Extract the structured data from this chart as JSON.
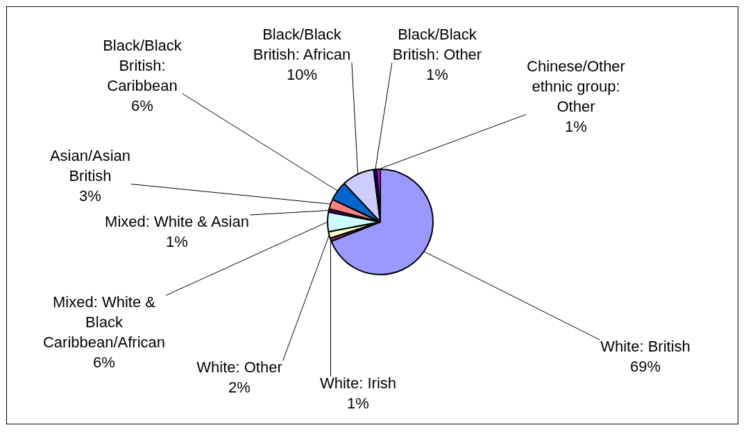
{
  "chart_data": {
    "type": "pie",
    "categories": [
      "White: British",
      "White: Irish",
      "White: Other",
      "Mixed: White & Black Caribbean/African",
      "Mixed: White & Asian",
      "Asian/Asian British",
      "Black/Black British: Caribbean",
      "Black/Black British: African",
      "Black/Black British: Other",
      "Chinese/Other ethnic group: Other"
    ],
    "values": [
      69,
      1,
      2,
      6,
      1,
      3,
      6,
      10,
      1,
      1
    ],
    "value_labels": [
      "69%",
      "1%",
      "2%",
      "6%",
      "1%",
      "3%",
      "6%",
      "10%",
      "1%",
      "1%"
    ],
    "colors": [
      "#9999ff",
      "#993366",
      "#ffffcc",
      "#ccffff",
      "#660066",
      "#ff8080",
      "#0066cc",
      "#ccccff",
      "#000080",
      "#ff00ff"
    ],
    "legend": false
  }
}
